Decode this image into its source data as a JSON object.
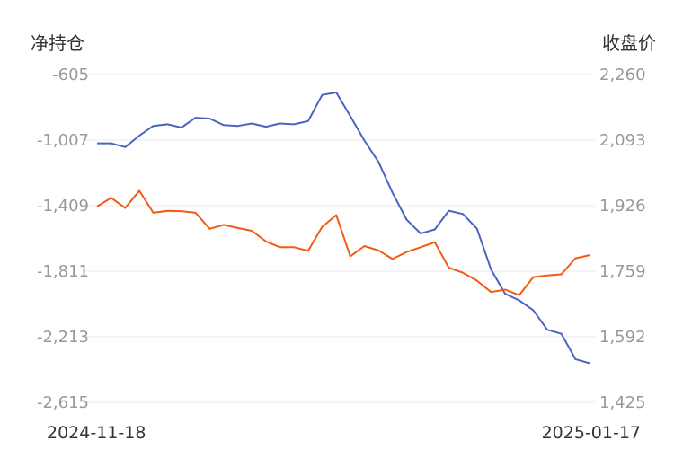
{
  "chart_data": {
    "type": "line",
    "left_axis_title": "净持仓",
    "right_axis_title": "收盘价",
    "left_ticks": [
      "-605",
      "-1,007",
      "-1,409",
      "-1,811",
      "-2,213",
      "-2,615"
    ],
    "right_ticks": [
      "2,260",
      "2,093",
      "1,926",
      "1,759",
      "1,592",
      "1,425"
    ],
    "left_range": [
      -2615,
      -605
    ],
    "right_range": [
      1425,
      2260
    ],
    "x_start_label": "2024-11-18",
    "x_end_label": "2025-01-17",
    "grid": true,
    "series": [
      {
        "axis": "left",
        "color": "#4a64c0",
        "values": [
          -1027,
          -1027,
          -1050,
          -980,
          -920,
          -910,
          -930,
          -870,
          -875,
          -915,
          -920,
          -905,
          -925,
          -905,
          -910,
          -890,
          -730,
          -715,
          -860,
          -1010,
          -1140,
          -1330,
          -1495,
          -1580,
          -1555,
          -1440,
          -1460,
          -1550,
          -1800,
          -1950,
          -1990,
          -2050,
          -2170,
          -2195,
          -2350,
          -2375
        ]
      },
      {
        "axis": "right",
        "color": "#f05a12",
        "values": [
          1924,
          1946,
          1920,
          1964,
          1908,
          1913,
          1912,
          1908,
          1867,
          1877,
          1869,
          1862,
          1835,
          1820,
          1820,
          1811,
          1872,
          1902,
          1797,
          1823,
          1812,
          1790,
          1808,
          1820,
          1833,
          1768,
          1755,
          1735,
          1706,
          1712,
          1698,
          1744,
          1748,
          1751,
          1792,
          1800
        ]
      }
    ]
  }
}
